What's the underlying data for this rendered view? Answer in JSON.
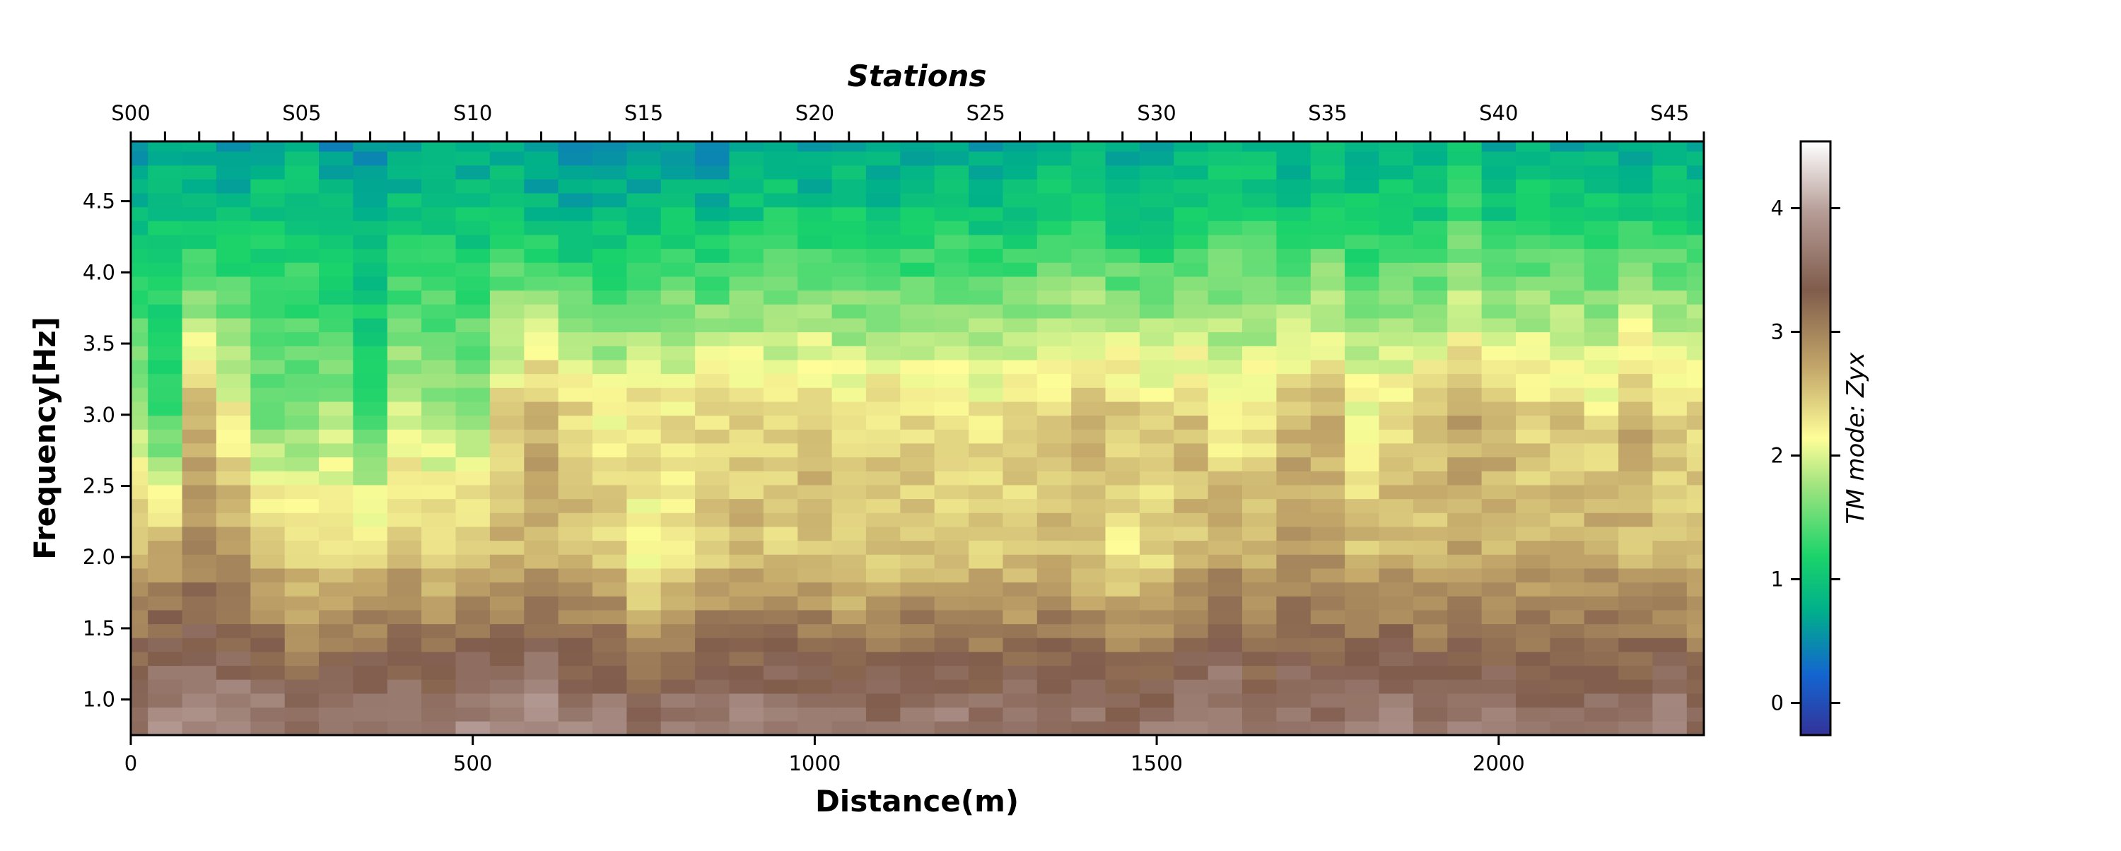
{
  "chart_data": {
    "type": "heatmap",
    "top_axis_title": "Stations",
    "xlabel": "Distance(m)",
    "ylabel": "Frequency[Hz]",
    "colorbar_label": "TM mode: Zyx",
    "colormap": "terrain",
    "xlim": [
      0,
      2300
    ],
    "ylim": [
      0.75,
      4.92
    ],
    "clim": [
      -0.26,
      4.54
    ],
    "x_ticks": [
      0,
      500,
      1000,
      1500,
      2000
    ],
    "x_tick_labels": [
      "0",
      "500",
      "1000",
      "1500",
      "2000"
    ],
    "y_ticks": [
      1.0,
      1.5,
      2.0,
      2.5,
      3.0,
      3.5,
      4.0,
      4.5
    ],
    "y_tick_labels": [
      "1.0",
      "1.5",
      "2.0",
      "2.5",
      "3.0",
      "3.5",
      "4.0",
      "4.5"
    ],
    "colorbar_ticks": [
      0,
      1,
      2,
      3,
      4
    ],
    "colorbar_tick_labels": [
      "0",
      "1",
      "2",
      "3",
      "4"
    ],
    "station_spacing_m": 50,
    "station_count": 47,
    "station_label_values_m": [
      0,
      250,
      500,
      750,
      1000,
      1250,
      1500,
      1750,
      2000,
      2250
    ],
    "station_labels": [
      "S00",
      "S05",
      "S10",
      "S15",
      "S20",
      "S25",
      "S30",
      "S35",
      "S40",
      "S45"
    ],
    "frequency_rows": 43,
    "frequency_min": 0.8,
    "frequency_max": 4.9,
    "column_profiles": [
      [
        3.6,
        2.6,
        1.8,
        0.8
      ],
      [
        3.7,
        2.8,
        1.3,
        1.0
      ],
      [
        3.8,
        2.9,
        2.6,
        0.9
      ],
      [
        3.7,
        2.8,
        2.2,
        0.8
      ],
      [
        3.6,
        2.6,
        1.6,
        1.0
      ],
      [
        3.4,
        2.4,
        1.7,
        1.0
      ],
      [
        3.5,
        2.4,
        1.8,
        0.8
      ],
      [
        3.6,
        2.5,
        1.4,
        0.7
      ],
      [
        3.6,
        2.6,
        2.0,
        0.9
      ],
      [
        3.5,
        2.5,
        1.8,
        1.0
      ],
      [
        3.7,
        2.6,
        1.8,
        0.9
      ],
      [
        3.6,
        2.6,
        2.4,
        1.0
      ],
      [
        3.8,
        2.7,
        2.7,
        0.8
      ],
      [
        3.6,
        2.6,
        2.4,
        0.7
      ],
      [
        3.6,
        2.5,
        2.2,
        0.8
      ],
      [
        3.4,
        2.0,
        2.4,
        0.8
      ],
      [
        3.5,
        2.3,
        2.3,
        0.9
      ],
      [
        3.6,
        2.5,
        2.4,
        0.8
      ],
      [
        3.6,
        2.6,
        2.4,
        0.9
      ],
      [
        3.6,
        2.5,
        2.4,
        1.0
      ],
      [
        3.5,
        2.6,
        2.5,
        0.9
      ],
      [
        3.5,
        2.4,
        2.3,
        1.0
      ],
      [
        3.5,
        2.5,
        2.4,
        0.9
      ],
      [
        3.6,
        2.6,
        2.3,
        0.9
      ],
      [
        3.6,
        2.5,
        2.3,
        1.0
      ],
      [
        3.5,
        2.5,
        2.3,
        0.9
      ],
      [
        3.5,
        2.5,
        2.4,
        0.9
      ],
      [
        3.6,
        2.6,
        2.4,
        1.1
      ],
      [
        3.5,
        2.5,
        2.6,
        1.0
      ],
      [
        3.4,
        2.3,
        2.5,
        0.9
      ],
      [
        3.5,
        2.4,
        2.4,
        0.9
      ],
      [
        3.6,
        2.6,
        2.5,
        1.0
      ],
      [
        3.7,
        2.8,
        2.2,
        1.2
      ],
      [
        3.5,
        2.6,
        2.3,
        1.1
      ],
      [
        3.6,
        2.8,
        2.6,
        1.0
      ],
      [
        3.5,
        2.8,
        2.6,
        1.1
      ],
      [
        3.5,
        2.6,
        2.2,
        1.0
      ],
      [
        3.6,
        2.7,
        2.3,
        1.1
      ],
      [
        3.5,
        2.6,
        2.5,
        1.0
      ],
      [
        3.6,
        2.7,
        2.7,
        1.2
      ],
      [
        3.6,
        2.7,
        2.6,
        0.9
      ],
      [
        3.4,
        2.7,
        2.4,
        1.1
      ],
      [
        3.5,
        2.6,
        2.5,
        1.0
      ],
      [
        3.6,
        2.7,
        2.3,
        1.1
      ],
      [
        3.5,
        2.6,
        2.7,
        1.0
      ],
      [
        3.6,
        2.6,
        2.4,
        1.1
      ],
      [
        3.4,
        2.5,
        2.4,
        1.0
      ]
    ],
    "column_profile_description": "per-station log-resistivity at frequencies [1.0, 2.0, 3.0, 4.5]; cells are interpolated between these anchors"
  }
}
